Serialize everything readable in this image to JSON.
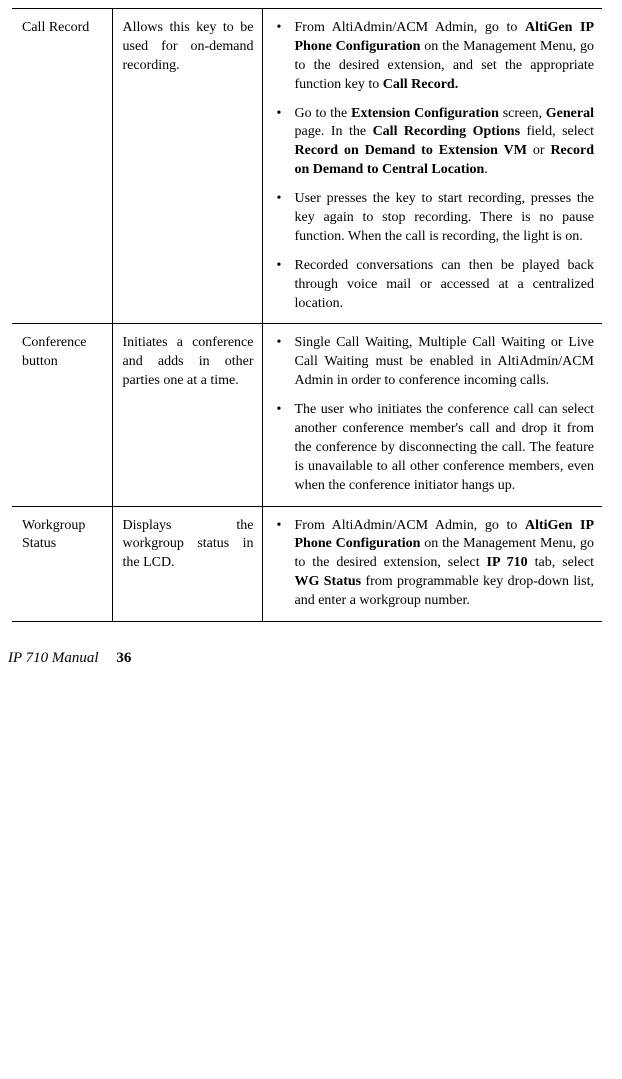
{
  "rows": [
    {
      "feature": "Call Record",
      "desc": "Allows this key to be used for on-demand recording.",
      "steps": [
        [
          {
            "t": "From AltiAdmin/ACM Admin, go to "
          },
          {
            "t": "AltiGen IP Phone Configuration",
            "b": true
          },
          {
            "t": " on the Management Menu, go to the desired extension, and set the appropriate function key to "
          },
          {
            "t": "Call Record.",
            "b": true
          }
        ],
        [
          {
            "t": "Go to the "
          },
          {
            "t": "Extension Configuration",
            "b": true
          },
          {
            "t": " screen, "
          },
          {
            "t": "General",
            "b": true
          },
          {
            "t": " page. In the "
          },
          {
            "t": "Call Recording Options",
            "b": true
          },
          {
            "t": " field, select "
          },
          {
            "t": "Record on Demand to Extension VM",
            "b": true
          },
          {
            "t": " or "
          },
          {
            "t": "Record on Demand to Central Location",
            "b": true
          },
          {
            "t": "."
          }
        ],
        [
          {
            "t": "User presses the key to start recording, presses the key again to stop recording. There is no pause function. When the call is recording, the light is on."
          }
        ],
        [
          {
            "t": "Recorded conversations can then be played back through voice mail or accessed at a centralized location."
          }
        ]
      ]
    },
    {
      "feature": "Conference button",
      "desc": "Initiates a conference and adds in other parties one at a time.",
      "steps": [
        [
          {
            "t": "Single Call Waiting, Multiple Call Waiting or Live Call Waiting must be enabled in AltiAdmin/ACM Admin in order to conference incoming calls."
          }
        ],
        [
          {
            "t": "The user who initiates the conference call can select another conference member's call and drop it from the conference by disconnecting the call. The feature is unavailable to all other conference members, even when the conference initiator hangs up."
          }
        ]
      ]
    },
    {
      "feature": "Workgroup Status",
      "desc": "Displays the workgroup status in the LCD.",
      "steps": [
        [
          {
            "t": "From AltiAdmin/ACM Admin, go to "
          },
          {
            "t": "AltiGen IP Phone Configuration",
            "b": true
          },
          {
            "t": " on the Management Menu, go to the desired extension, select "
          },
          {
            "t": "IP 710",
            "b": true
          },
          {
            "t": " tab, select "
          },
          {
            "t": "WG Status",
            "b": true
          },
          {
            "t": " from programmable key drop-down list, and enter a workgroup number."
          }
        ]
      ]
    }
  ],
  "footer": {
    "title": "IP 710 Manual",
    "page": "36"
  }
}
